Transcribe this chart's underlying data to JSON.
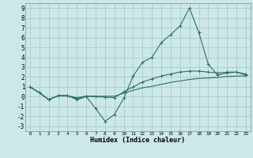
{
  "xlabel": "Humidex (Indice chaleur)",
  "ylabel": "",
  "background_color": "#cde8e8",
  "grid_color": "#aacccc",
  "line_color": "#2a7060",
  "xlim": [
    -0.5,
    23.5
  ],
  "ylim": [
    -3.5,
    9.5
  ],
  "xticks": [
    0,
    1,
    2,
    3,
    4,
    5,
    6,
    7,
    8,
    9,
    10,
    11,
    12,
    13,
    14,
    15,
    16,
    17,
    18,
    19,
    20,
    21,
    22,
    23
  ],
  "yticks": [
    -3,
    -2,
    -1,
    0,
    1,
    2,
    3,
    4,
    5,
    6,
    7,
    8,
    9
  ],
  "line1_x": [
    0,
    1,
    2,
    3,
    4,
    5,
    6,
    7,
    8,
    9,
    10,
    11,
    12,
    13,
    14,
    15,
    16,
    17,
    18,
    19,
    20,
    21,
    22,
    23
  ],
  "line1_y": [
    1.0,
    0.4,
    -0.3,
    0.1,
    0.1,
    -0.3,
    0.0,
    -1.2,
    -2.5,
    -1.8,
    -0.15,
    2.1,
    3.5,
    4.0,
    5.5,
    6.3,
    7.2,
    9.0,
    6.5,
    3.3,
    2.2,
    2.4,
    2.5,
    2.2
  ],
  "line2_x": [
    0,
    1,
    2,
    3,
    4,
    5,
    6,
    7,
    8,
    9,
    10,
    11,
    12,
    13,
    14,
    15,
    16,
    17,
    18,
    19,
    20,
    21,
    22,
    23
  ],
  "line2_y": [
    1.0,
    0.4,
    -0.3,
    0.1,
    0.1,
    -0.2,
    0.05,
    0.0,
    -0.05,
    -0.1,
    0.5,
    1.0,
    1.5,
    1.8,
    2.1,
    2.3,
    2.5,
    2.6,
    2.6,
    2.5,
    2.4,
    2.5,
    2.5,
    2.3
  ],
  "line3_x": [
    0,
    1,
    2,
    3,
    4,
    5,
    6,
    7,
    8,
    9,
    10,
    11,
    12,
    13,
    14,
    15,
    16,
    17,
    18,
    19,
    20,
    21,
    22,
    23
  ],
  "line3_y": [
    1.0,
    0.4,
    -0.3,
    0.1,
    0.1,
    -0.1,
    0.05,
    0.05,
    0.05,
    0.05,
    0.35,
    0.65,
    0.9,
    1.05,
    1.25,
    1.45,
    1.6,
    1.75,
    1.85,
    1.9,
    1.95,
    2.05,
    2.1,
    2.1
  ]
}
